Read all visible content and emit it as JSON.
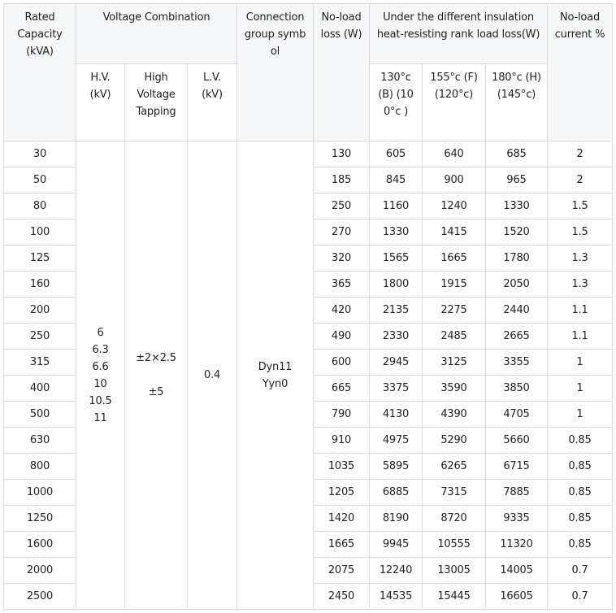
{
  "headers": {
    "rated_capacity": "Rated Capacity (kVA)",
    "voltage_combination": "Voltage Combination",
    "connection_group": "Connection group symbol",
    "no_load_loss": "No-load loss (W)",
    "load_loss": "Under the different insulation heat-resisting rank load loss(W)",
    "no_load_current": "No-load current %",
    "hv": "H.V. (kV)",
    "hv_tapping": "High Voltage Tapping",
    "lv": "L.V. (kV)",
    "class_b": "130°c (B) (100°c )",
    "class_f": "155°c (F) (120°c)",
    "class_h": "180°c (H) (145°c)"
  },
  "merged": {
    "hv": "6\n6.3\n6.6\n10\n10.5\n11",
    "hv_tapping": "±2×2.5\n\n±5",
    "lv": "0.4",
    "connection_group": "Dyn11\nYyn0"
  },
  "rows": [
    [
      "30",
      "130",
      "605",
      "640",
      "685",
      "2"
    ],
    [
      "50",
      "185",
      "845",
      "900",
      "965",
      "2"
    ],
    [
      "80",
      "250",
      "1160",
      "1240",
      "1330",
      "1.5"
    ],
    [
      "100",
      "270",
      "1330",
      "1415",
      "1520",
      "1.5"
    ],
    [
      "125",
      "320",
      "1565",
      "1665",
      "1780",
      "1.3"
    ],
    [
      "160",
      "365",
      "1800",
      "1915",
      "2050",
      "1.3"
    ],
    [
      "200",
      "420",
      "2135",
      "2275",
      "2440",
      "1.1"
    ],
    [
      "250",
      "490",
      "2330",
      "2485",
      "2665",
      "1.1"
    ],
    [
      "315",
      "600",
      "2945",
      "3125",
      "3355",
      "1"
    ],
    [
      "400",
      "665",
      "3375",
      "3590",
      "3850",
      "1"
    ],
    [
      "500",
      "790",
      "4130",
      "4390",
      "4705",
      "1"
    ],
    [
      "630",
      "910",
      "4975",
      "5290",
      "5660",
      "0.85"
    ],
    [
      "800",
      "1035",
      "5895",
      "6265",
      "6715",
      "0.85"
    ],
    [
      "1000",
      "1205",
      "6885",
      "7315",
      "7885",
      "0.85"
    ],
    [
      "1250",
      "1420",
      "8190",
      "8720",
      "9335",
      "0.85"
    ],
    [
      "1600",
      "1665",
      "9945",
      "10555",
      "11320",
      "0.85"
    ],
    [
      "2000",
      "2075",
      "12240",
      "13005",
      "14005",
      "0.7"
    ],
    [
      "2500",
      "2450",
      "14535",
      "15445",
      "16605",
      "0.7"
    ]
  ]
}
